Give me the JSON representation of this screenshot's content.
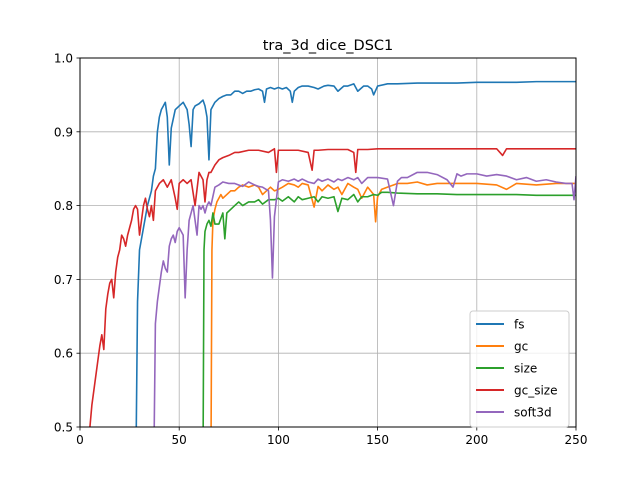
{
  "chart_data": {
    "type": "line",
    "title": "tra_3d_dice_DSC1",
    "xlabel": "",
    "ylabel": "",
    "xlim": [
      0,
      250
    ],
    "ylim": [
      0.5,
      1.0
    ],
    "xticks": [
      0,
      50,
      100,
      150,
      200,
      250
    ],
    "xtick_labels": [
      "0",
      "50",
      "100",
      "150",
      "200",
      "250"
    ],
    "yticks": [
      0.5,
      0.6,
      0.7,
      0.8,
      0.9,
      1.0
    ],
    "ytick_labels": [
      "0.5",
      "0.6",
      "0.7",
      "0.8",
      "0.9",
      "1.0"
    ],
    "grid": true,
    "legend_position": "lower-right",
    "series": [
      {
        "name": "fs",
        "color": "#1f77b4",
        "x": [
          28,
          29,
          30,
          32,
          34,
          35,
          36,
          37,
          38,
          39,
          40,
          41,
          42,
          43,
          44,
          45,
          46,
          48,
          50,
          52,
          54,
          55,
          56,
          57,
          58,
          60,
          62,
          63,
          64,
          65,
          66,
          68,
          70,
          72,
          74,
          76,
          78,
          80,
          82,
          84,
          86,
          88,
          90,
          92,
          93,
          94,
          96,
          98,
          100,
          102,
          104,
          106,
          107,
          108,
          110,
          112,
          115,
          118,
          120,
          123,
          125,
          128,
          130,
          133,
          135,
          138,
          140,
          143,
          145,
          147,
          148,
          150,
          155,
          160,
          170,
          180,
          190,
          200,
          210,
          220,
          230,
          240,
          250
        ],
        "y": [
          0.4,
          0.67,
          0.74,
          0.77,
          0.8,
          0.81,
          0.82,
          0.84,
          0.85,
          0.9,
          0.92,
          0.93,
          0.935,
          0.94,
          0.92,
          0.855,
          0.905,
          0.93,
          0.935,
          0.94,
          0.93,
          0.91,
          0.88,
          0.93,
          0.935,
          0.938,
          0.943,
          0.935,
          0.92,
          0.862,
          0.93,
          0.94,
          0.945,
          0.948,
          0.95,
          0.95,
          0.955,
          0.955,
          0.952,
          0.955,
          0.955,
          0.957,
          0.958,
          0.955,
          0.94,
          0.958,
          0.96,
          0.958,
          0.96,
          0.958,
          0.96,
          0.955,
          0.94,
          0.955,
          0.96,
          0.962,
          0.962,
          0.96,
          0.958,
          0.962,
          0.963,
          0.962,
          0.955,
          0.962,
          0.962,
          0.965,
          0.955,
          0.962,
          0.962,
          0.958,
          0.95,
          0.962,
          0.965,
          0.965,
          0.966,
          0.966,
          0.966,
          0.967,
          0.967,
          0.967,
          0.968,
          0.968,
          0.968
        ]
      },
      {
        "name": "gc",
        "color": "#ff7f0e",
        "x": [
          66,
          66.5,
          67,
          68,
          69,
          70,
          71,
          72,
          74,
          76,
          78,
          80,
          82,
          85,
          88,
          90,
          92,
          94,
          96,
          98,
          100,
          102,
          105,
          108,
          110,
          112,
          115,
          118,
          120,
          122,
          125,
          128,
          130,
          132,
          135,
          138,
          140,
          142,
          145,
          148,
          149,
          150,
          152,
          155,
          158,
          160,
          165,
          170,
          175,
          180,
          190,
          200,
          210,
          215,
          220,
          230,
          240,
          250
        ],
        "y": [
          0.45,
          0.74,
          0.78,
          0.795,
          0.805,
          0.81,
          0.815,
          0.81,
          0.815,
          0.82,
          0.82,
          0.825,
          0.828,
          0.825,
          0.828,
          0.825,
          0.815,
          0.82,
          0.825,
          0.82,
          0.822,
          0.825,
          0.83,
          0.828,
          0.825,
          0.83,
          0.828,
          0.798,
          0.826,
          0.82,
          0.828,
          0.822,
          0.825,
          0.815,
          0.83,
          0.825,
          0.822,
          0.81,
          0.825,
          0.815,
          0.778,
          0.812,
          0.822,
          0.825,
          0.828,
          0.83,
          0.83,
          0.832,
          0.828,
          0.83,
          0.83,
          0.83,
          0.828,
          0.822,
          0.83,
          0.828,
          0.83,
          0.83
        ]
      },
      {
        "name": "size",
        "color": "#2ca02c",
        "x": [
          62,
          62.5,
          63,
          64,
          65,
          66,
          67,
          68,
          70,
          72,
          73,
          74,
          76,
          78,
          80,
          82,
          85,
          88,
          90,
          92,
          95,
          98,
          100,
          102,
          105,
          108,
          110,
          112,
          115,
          118,
          120,
          122,
          125,
          128,
          130,
          132,
          135,
          138,
          140,
          142,
          145,
          148,
          150,
          152,
          155,
          160,
          170,
          180,
          190,
          200,
          210,
          220,
          230,
          240,
          250
        ],
        "y": [
          0.45,
          0.74,
          0.765,
          0.775,
          0.78,
          0.772,
          0.79,
          0.775,
          0.775,
          0.79,
          0.755,
          0.79,
          0.795,
          0.8,
          0.805,
          0.8,
          0.805,
          0.805,
          0.808,
          0.802,
          0.808,
          0.808,
          0.81,
          0.806,
          0.812,
          0.805,
          0.812,
          0.808,
          0.81,
          0.812,
          0.805,
          0.812,
          0.81,
          0.812,
          0.792,
          0.81,
          0.808,
          0.815,
          0.805,
          0.812,
          0.812,
          0.815,
          0.814,
          0.818,
          0.818,
          0.817,
          0.816,
          0.816,
          0.815,
          0.815,
          0.815,
          0.815,
          0.814,
          0.814,
          0.814
        ]
      },
      {
        "name": "gc_size",
        "color": "#d62728",
        "x": [
          5,
          6,
          7,
          8,
          9,
          10,
          11,
          12,
          13,
          14,
          15,
          16,
          17,
          18,
          19,
          20,
          21,
          22,
          23,
          24,
          25,
          26,
          27,
          28,
          29,
          30,
          31,
          32,
          33,
          34,
          35,
          36,
          37,
          38,
          40,
          42,
          44,
          46,
          48,
          49,
          50,
          52,
          54,
          56,
          58,
          60,
          61,
          62,
          63,
          64,
          65,
          66,
          68,
          70,
          72,
          75,
          78,
          80,
          85,
          90,
          95,
          98,
          99,
          100,
          102,
          105,
          110,
          115,
          116,
          117,
          118,
          120,
          125,
          130,
          135,
          138,
          139,
          140,
          142,
          145,
          150,
          155,
          160,
          170,
          180,
          190,
          200,
          210,
          213,
          215,
          220,
          230,
          240,
          250
        ],
        "y": [
          0.5,
          0.53,
          0.55,
          0.57,
          0.59,
          0.61,
          0.625,
          0.605,
          0.66,
          0.68,
          0.695,
          0.7,
          0.675,
          0.71,
          0.73,
          0.74,
          0.76,
          0.755,
          0.745,
          0.76,
          0.77,
          0.78,
          0.795,
          0.8,
          0.795,
          0.76,
          0.78,
          0.8,
          0.81,
          0.795,
          0.785,
          0.8,
          0.78,
          0.82,
          0.83,
          0.835,
          0.825,
          0.835,
          0.81,
          0.795,
          0.83,
          0.835,
          0.83,
          0.835,
          0.8,
          0.845,
          0.84,
          0.835,
          0.805,
          0.835,
          0.845,
          0.845,
          0.855,
          0.862,
          0.865,
          0.868,
          0.872,
          0.872,
          0.875,
          0.875,
          0.872,
          0.877,
          0.845,
          0.875,
          0.875,
          0.875,
          0.875,
          0.872,
          0.86,
          0.848,
          0.875,
          0.875,
          0.876,
          0.876,
          0.876,
          0.872,
          0.845,
          0.876,
          0.876,
          0.876,
          0.877,
          0.877,
          0.877,
          0.877,
          0.877,
          0.877,
          0.877,
          0.877,
          0.868,
          0.877,
          0.877,
          0.877,
          0.877,
          0.877
        ]
      },
      {
        "name": "soft3d",
        "color": "#9467bd",
        "x": [
          37,
          38,
          39,
          40,
          41,
          42,
          43,
          44,
          45,
          46,
          47,
          48,
          49,
          50,
          51,
          52,
          53,
          54,
          55,
          56,
          57,
          58,
          59,
          60,
          61,
          62,
          63,
          64,
          65,
          66,
          68,
          70,
          72,
          75,
          78,
          80,
          82,
          85,
          88,
          90,
          92,
          95,
          96,
          97,
          98,
          100,
          102,
          105,
          108,
          110,
          112,
          115,
          118,
          120,
          122,
          125,
          128,
          130,
          132,
          135,
          138,
          140,
          142,
          145,
          150,
          155,
          158,
          160,
          162,
          165,
          170,
          175,
          180,
          185,
          188,
          190,
          192,
          195,
          200,
          205,
          210,
          215,
          220,
          225,
          230,
          235,
          240,
          245,
          248,
          249,
          250
        ],
        "y": [
          0.4,
          0.64,
          0.67,
          0.69,
          0.71,
          0.725,
          0.715,
          0.71,
          0.745,
          0.755,
          0.76,
          0.75,
          0.765,
          0.77,
          0.765,
          0.76,
          0.675,
          0.74,
          0.78,
          0.79,
          0.8,
          0.78,
          0.76,
          0.8,
          0.795,
          0.8,
          0.79,
          0.8,
          0.805,
          0.8,
          0.825,
          0.828,
          0.832,
          0.83,
          0.83,
          0.828,
          0.826,
          0.832,
          0.828,
          0.826,
          0.825,
          0.82,
          0.78,
          0.702,
          0.785,
          0.832,
          0.835,
          0.833,
          0.836,
          0.833,
          0.836,
          0.832,
          0.83,
          0.836,
          0.833,
          0.836,
          0.832,
          0.836,
          0.834,
          0.838,
          0.835,
          0.838,
          0.83,
          0.838,
          0.838,
          0.836,
          0.8,
          0.833,
          0.838,
          0.838,
          0.845,
          0.845,
          0.842,
          0.835,
          0.825,
          0.843,
          0.84,
          0.843,
          0.843,
          0.84,
          0.842,
          0.84,
          0.835,
          0.838,
          0.833,
          0.835,
          0.832,
          0.83,
          0.83,
          0.808,
          0.84
        ]
      }
    ]
  }
}
